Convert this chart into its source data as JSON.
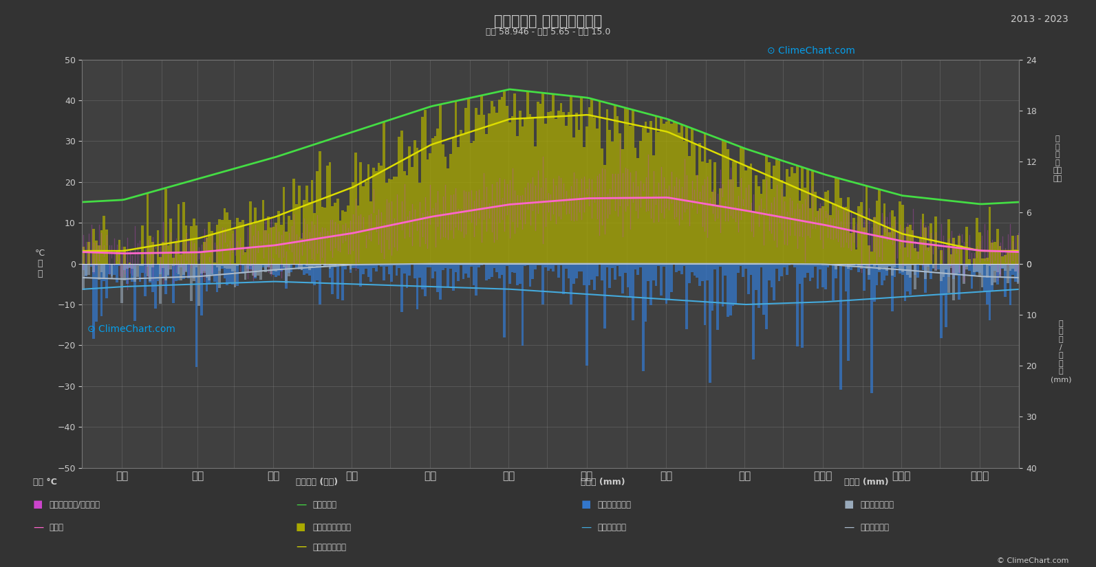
{
  "title": "の気候変動 スタヴァンゲル",
  "subtitle": "緯度 58.946 - 経度 5.65 - 標高 15.0",
  "year_range": "2013 - 2023",
  "bg_color": "#333333",
  "plot_bg_color": "#404040",
  "grid_color": "#aaaaaa",
  "text_color": "#cccccc",
  "months": [
    "１月",
    "２月",
    "３月",
    "４月",
    "５月",
    "６月",
    "７月",
    "８月",
    "９月",
    "１０月",
    "１１月",
    "１２月"
  ],
  "temp_ylim": [
    -50,
    50
  ],
  "temp_avg_monthly": [
    2.5,
    2.8,
    4.5,
    7.5,
    11.5,
    14.5,
    16.0,
    16.2,
    13.0,
    9.5,
    5.5,
    3.2
  ],
  "temp_max_monthly": [
    5.5,
    5.8,
    7.5,
    11.0,
    15.5,
    18.5,
    20.5,
    21.0,
    17.5,
    13.0,
    8.5,
    6.0
  ],
  "temp_min_monthly": [
    -1.0,
    -0.5,
    1.5,
    4.0,
    7.5,
    10.5,
    12.0,
    12.5,
    9.5,
    6.5,
    2.5,
    0.5
  ],
  "temp_abs_max_monthly": [
    14.0,
    15.0,
    18.0,
    22.0,
    27.0,
    30.0,
    32.0,
    33.0,
    28.0,
    22.0,
    17.0,
    14.0
  ],
  "temp_abs_min_monthly": [
    -14.0,
    -13.0,
    -9.0,
    -5.0,
    -1.0,
    3.0,
    6.0,
    5.0,
    1.0,
    -3.0,
    -8.0,
    -13.0
  ],
  "sun_daylight_monthly": [
    7.5,
    10.0,
    12.5,
    15.5,
    18.5,
    20.5,
    19.5,
    17.0,
    13.5,
    10.5,
    8.0,
    7.0
  ],
  "sun_hours_monthly": [
    1.5,
    3.0,
    5.5,
    9.0,
    14.0,
    17.0,
    17.5,
    15.5,
    11.5,
    7.5,
    3.5,
    1.5
  ],
  "rain_daily_avg_monthly": [
    5.5,
    4.5,
    4.0,
    4.5,
    5.0,
    5.5,
    6.5,
    7.5,
    8.5,
    8.0,
    7.0,
    6.0
  ],
  "snow_daily_avg_monthly": [
    3.5,
    3.0,
    1.5,
    0.3,
    0.0,
    0.0,
    0.0,
    0.0,
    0.0,
    0.2,
    1.5,
    3.0
  ],
  "rain_avg_line_monthly": [
    4.5,
    4.0,
    3.5,
    4.0,
    4.5,
    5.0,
    6.0,
    7.0,
    8.0,
    7.5,
    6.5,
    5.5
  ],
  "snow_avg_line_monthly": [
    3.0,
    2.5,
    1.2,
    0.2,
    0.0,
    0.0,
    0.0,
    0.0,
    0.0,
    0.1,
    1.2,
    2.5
  ],
  "color_temp_band": "#cc44cc",
  "color_temp_avg": "#ff66cc",
  "color_daylight": "#44dd44",
  "color_sun_bar": "#aaaa00",
  "color_sun_avg": "#dddd00",
  "color_rain_bar": "#3377cc",
  "color_rain_avg": "#44aadd",
  "color_snow_bar": "#99aabb",
  "color_snow_avg": "#aabbcc",
  "rain_scale_max": 40,
  "sun_scale_max": 24,
  "logo_color": "#00aaff",
  "watermark_text": "ClimeChart.com",
  "copyright_text": "© ClimeChart.com"
}
